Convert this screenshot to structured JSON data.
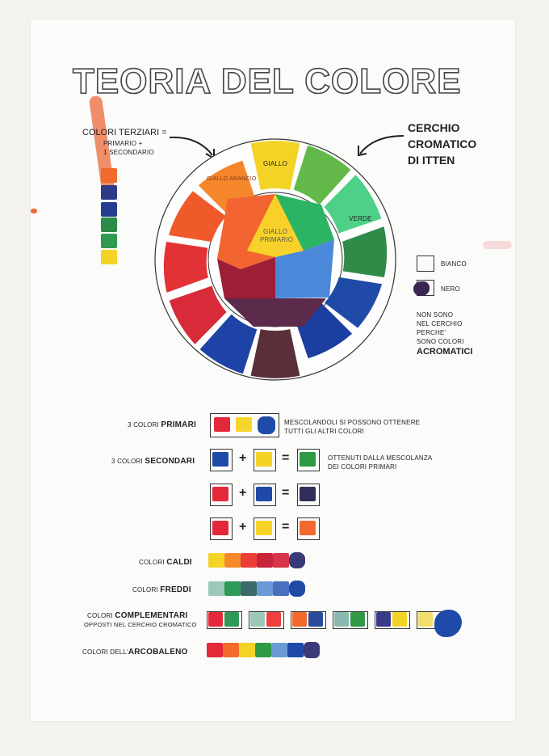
{
  "title": "TEORIA DEL COLORE",
  "left_note": {
    "title": "COLORI TERZIARI =",
    "line1": "PRIMARIO +",
    "line2": "1 SECONDARIO"
  },
  "right_note": {
    "line1": "CERCHIO",
    "line2": "CROMATICO",
    "line3": "DI ITTEN"
  },
  "wheel_labels": {
    "giallo": "GIALLO",
    "giallo_arancio": "GIALLO ARANCIO",
    "verde": "VERDE",
    "giallo_primario_1": "GIALLO",
    "giallo_primario_2": "PRIMARIO"
  },
  "achromatic": {
    "bianco": "BIANCO",
    "nero": "NERO",
    "note1": "NON SONO",
    "note2": "NEL CERCHIO",
    "note3": "PERCHE'",
    "note4": "SONO COLORI",
    "note5": "ACROMATICI"
  },
  "rows": {
    "primari": {
      "prefix": "3 COLORI ",
      "bold": "PRIMARI",
      "desc1": "MESCOLANDOLI SI POSSONO OTTENERE",
      "desc2": "TUTTI GLI ALTRI COLORI"
    },
    "secondari": {
      "prefix": "3 COLORI ",
      "bold": "SECONDARI",
      "desc1": "OTTENUTI DALLA MESCOLANZA",
      "desc2": "DEI COLORI PRIMARI"
    },
    "caldi": {
      "prefix": "COLORI ",
      "bold": "CALDI"
    },
    "freddi": {
      "prefix": "COLORI ",
      "bold": "FREDDI"
    },
    "complementari": {
      "prefix": "COLORI ",
      "bold": "COMPLEMENTARI",
      "sub": "OPPOSTI NEL CERCHIO CROMATICO"
    },
    "arcobaleno": {
      "prefix": "COLORI DELL'",
      "bold": "ARCOBALENO"
    }
  },
  "symbols": {
    "plus": "+",
    "equals": "="
  },
  "colors": {
    "red": "#d9283a",
    "orange": "#f0652a",
    "yellow": "#f4d327",
    "green": "#2e9a45",
    "blue": "#1f4aa8",
    "violet": "#3a2654",
    "teal": "#8fc4b4",
    "light_green": "#49c37a"
  },
  "left_swatches": [
    "#f26a2c",
    "#2f3a86",
    "#263c8f",
    "#2b8c4a",
    "#2f9a4f",
    "#f4d327"
  ]
}
